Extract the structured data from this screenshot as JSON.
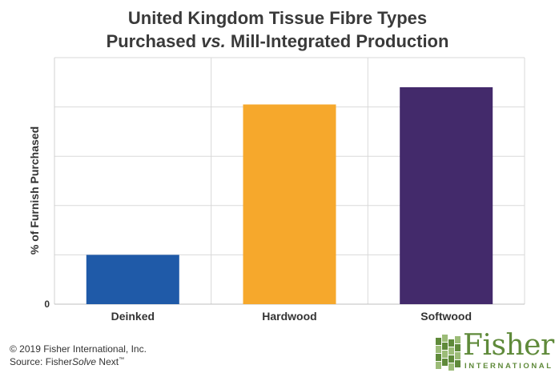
{
  "chart_data": {
    "type": "bar",
    "title_line1": "United Kingdom Tissue Fibre Types",
    "title_line2_a": "Purchased ",
    "title_line2_vs": "vs.",
    "title_line2_b": " Mill-Integrated Production",
    "ylabel": "% of Furnish Purchased",
    "xlabel": "",
    "categories": [
      "Deinked",
      "Hardwood",
      "Softwood"
    ],
    "values": [
      10,
      40.5,
      44
    ],
    "colors": [
      "#1f5aa8",
      "#f6a82c",
      "#432a6b"
    ],
    "ylim": [
      0,
      50
    ],
    "yticks": [
      0,
      10,
      20,
      30,
      40,
      50
    ],
    "ytick_labels": [
      "0",
      "",
      "",
      "",
      "",
      ""
    ],
    "grid": true
  },
  "footer": {
    "copyright": "© 2019 Fisher International, Inc.",
    "source_prefix": "Source: Fisher",
    "source_italic": "Solve",
    "source_suffix": " Next",
    "trademark": "™"
  },
  "logo": {
    "word": "Fisher",
    "subword": "INTERNATIONAL",
    "icon": "stacked-blocks-icon",
    "colors": {
      "primary": "#5f8a3a",
      "light": "#9cbc78"
    }
  }
}
